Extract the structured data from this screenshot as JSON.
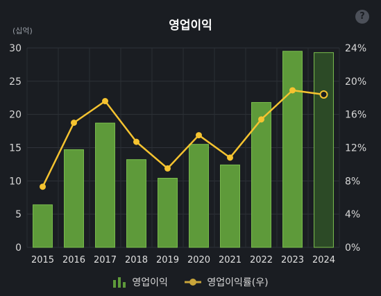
{
  "chart_data": {
    "type": "bar",
    "title": "영업이익",
    "unit_label": "(십억)",
    "categories": [
      "2015",
      "2016",
      "2017",
      "2018",
      "2019",
      "2020",
      "2021",
      "2022",
      "2023",
      "2024"
    ],
    "series": [
      {
        "name": "영업이익",
        "type": "bar",
        "axis": "left",
        "color": "#5e9a3a",
        "values": [
          6.4,
          14.7,
          18.7,
          13.2,
          10.4,
          15.5,
          12.4,
          21.8,
          29.5,
          29.3
        ]
      },
      {
        "name": "영업이익률(우)",
        "type": "line",
        "axis": "right",
        "color": "#f5c330",
        "values": [
          7.3,
          15.0,
          17.6,
          12.7,
          9.5,
          13.5,
          10.8,
          15.4,
          18.9,
          18.4
        ]
      }
    ],
    "ylim_left": [
      0,
      30
    ],
    "yticks_left": [
      "0",
      "5",
      "10",
      "15",
      "20",
      "25",
      "30"
    ],
    "ylim_right": [
      0,
      24
    ],
    "yticks_right": [
      "0%",
      "4%",
      "8%",
      "12%",
      "16%",
      "20%",
      "24%"
    ],
    "last_category_estimate": true,
    "grid": true,
    "legend_position": "bottom"
  },
  "help_icon_label": "?"
}
